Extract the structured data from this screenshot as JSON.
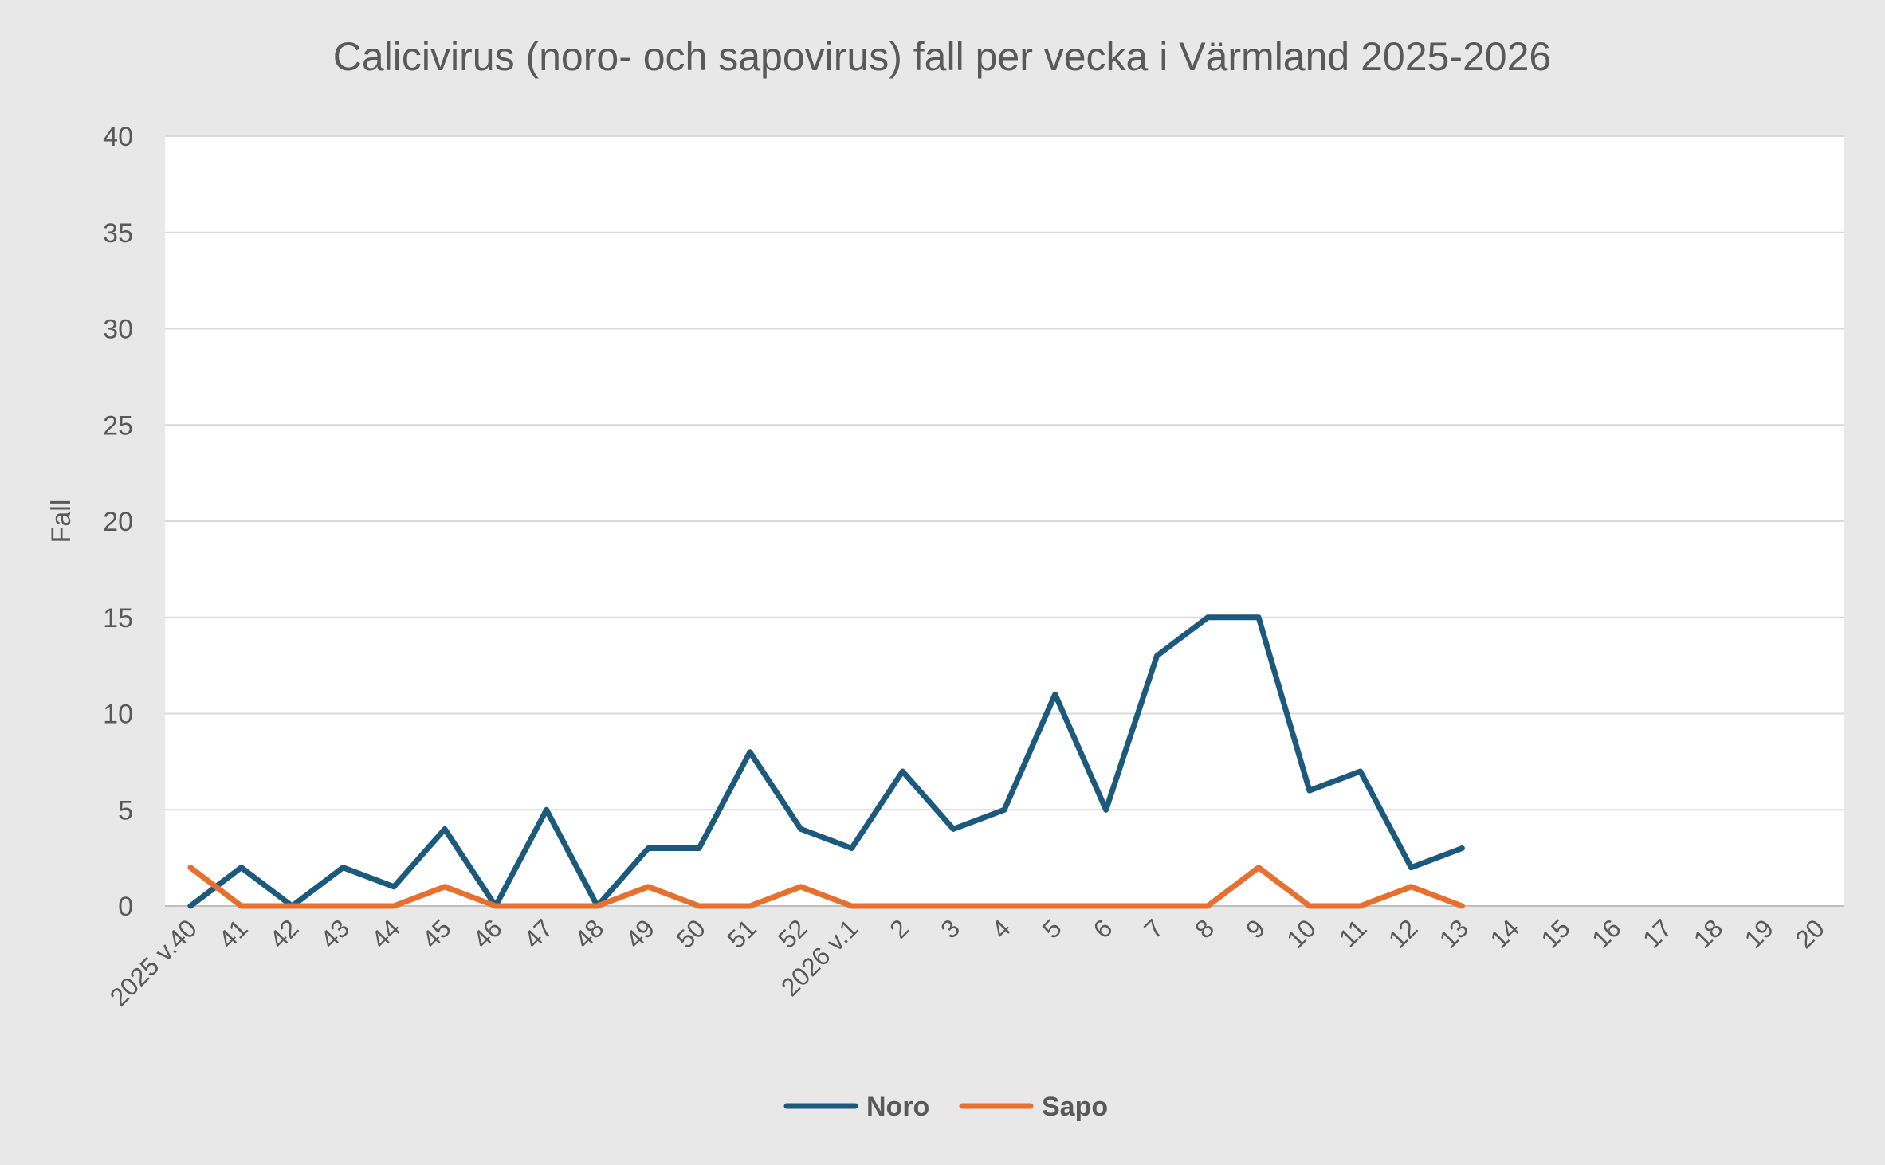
{
  "chart_data": {
    "type": "line",
    "title": "Calicivirus (noro- och sapovirus) fall per vecka i Värmland 2025-2026",
    "xlabel": "",
    "ylabel": "Fall",
    "ylim": [
      0,
      40
    ],
    "yticks": [
      0,
      5,
      10,
      15,
      20,
      25,
      30,
      35,
      40
    ],
    "grid": "horizontal",
    "legend_position": "bottom",
    "categories": [
      "2025 v.40",
      "41",
      "42",
      "43",
      "44",
      "45",
      "46",
      "47",
      "48",
      "49",
      "50",
      "51",
      "52",
      "2026 v.1",
      "2",
      "3",
      "4",
      "5",
      "6",
      "7",
      "8",
      "9",
      "10",
      "11",
      "12",
      "13",
      "14",
      "15",
      "16",
      "17",
      "18",
      "19",
      "20"
    ],
    "series": [
      {
        "name": "Noro",
        "color": "#1b5a7c",
        "values": [
          0,
          2,
          0,
          2,
          1,
          4,
          0,
          5,
          0,
          3,
          3,
          8,
          4,
          3,
          7,
          4,
          5,
          11,
          5,
          13,
          15,
          15,
          6,
          7,
          2,
          3,
          null,
          null,
          null,
          null,
          null,
          null,
          null
        ]
      },
      {
        "name": "Sapo",
        "color": "#e8702e",
        "values": [
          2,
          0,
          0,
          0,
          0,
          1,
          0,
          0,
          0,
          1,
          0,
          0,
          1,
          0,
          0,
          0,
          0,
          0,
          0,
          0,
          0,
          2,
          0,
          0,
          1,
          0,
          null,
          null,
          null,
          null,
          null,
          null,
          null
        ]
      }
    ]
  }
}
